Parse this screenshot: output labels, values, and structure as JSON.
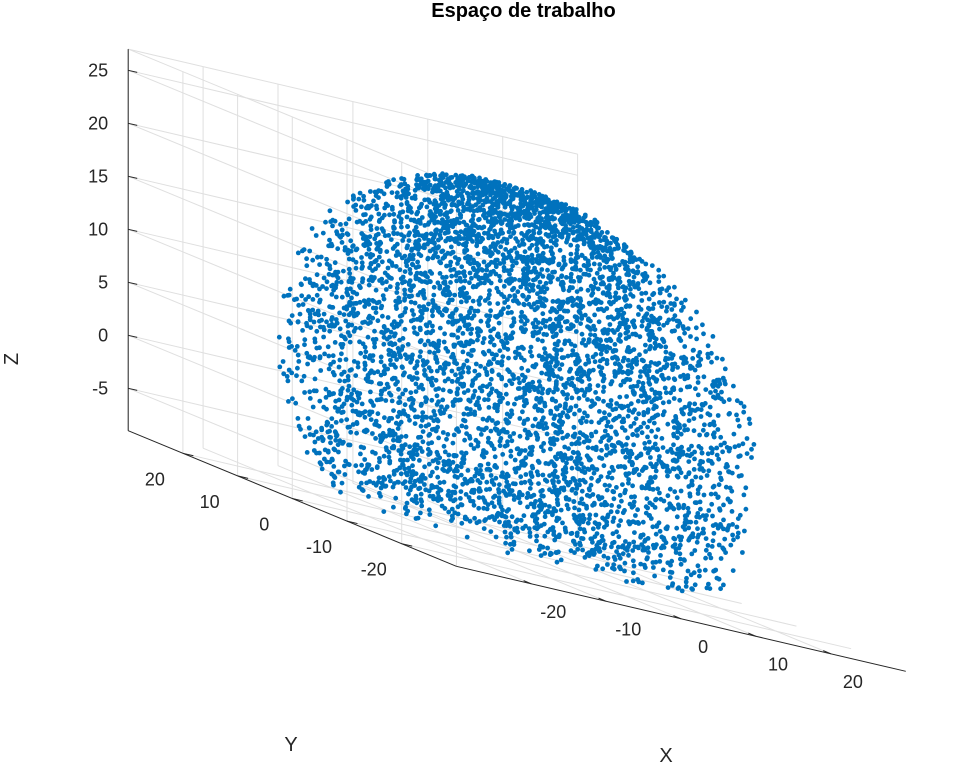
{
  "chart_data": {
    "type": "scatter",
    "title": "Espaço de trabalho",
    "xlabel": "X",
    "ylabel": "Y",
    "zlabel": "Z",
    "xlim": [
      -30,
      30
    ],
    "ylim": [
      -30,
      30
    ],
    "zlim": [
      -9,
      27
    ],
    "x_ticks": [
      -20,
      -10,
      0,
      10,
      20
    ],
    "y_ticks": [
      -20,
      -10,
      0,
      10,
      20
    ],
    "z_ticks": [
      -5,
      0,
      5,
      10,
      15,
      20,
      25
    ],
    "grid": true,
    "series": [
      {
        "color": "#0072bd",
        "marker": "filled-circle",
        "description": "dense point cloud forming a dome-shaped workspace, roughly radius 26, z from about -8 to 25",
        "radius_max": 26,
        "z_range": [
          -8,
          25
        ]
      }
    ]
  }
}
